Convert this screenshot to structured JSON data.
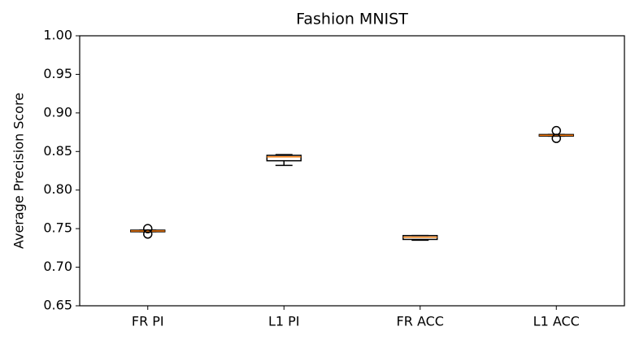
{
  "chart_data": {
    "type": "box",
    "title": "Fashion MNIST",
    "y_label": "Average Precision Score",
    "categories": [
      "FR PI",
      "L1 PI",
      "FR ACC",
      "L1 ACC"
    ],
    "box_color": "#000000",
    "median_color": "#ff7f0e",
    "boxes": [
      {
        "whislo": 0.746,
        "q1": 0.746,
        "med": 0.747,
        "q3": 0.748,
        "whishi": 0.748,
        "fliers": [
          0.75,
          0.743
        ]
      },
      {
        "whislo": 0.832,
        "q1": 0.838,
        "med": 0.843,
        "q3": 0.845,
        "whishi": 0.846,
        "fliers": []
      },
      {
        "whislo": 0.735,
        "q1": 0.736,
        "med": 0.739,
        "q3": 0.741,
        "whishi": 0.741,
        "fliers": []
      },
      {
        "whislo": 0.87,
        "q1": 0.87,
        "med": 0.871,
        "q3": 0.872,
        "whishi": 0.872,
        "fliers": [
          0.877,
          0.867
        ]
      }
    ],
    "ylim": [
      0.65,
      1.0
    ],
    "yticks": [
      0.65,
      {
        "value": 0.7,
        "label": "0.70"
      },
      0.75,
      {
        "value": 0.8,
        "label": "0.80"
      },
      0.85,
      {
        "value": 0.9,
        "label": "0.90"
      },
      0.95,
      {
        "value": 1.0,
        "label": "1.00"
      }
    ]
  }
}
